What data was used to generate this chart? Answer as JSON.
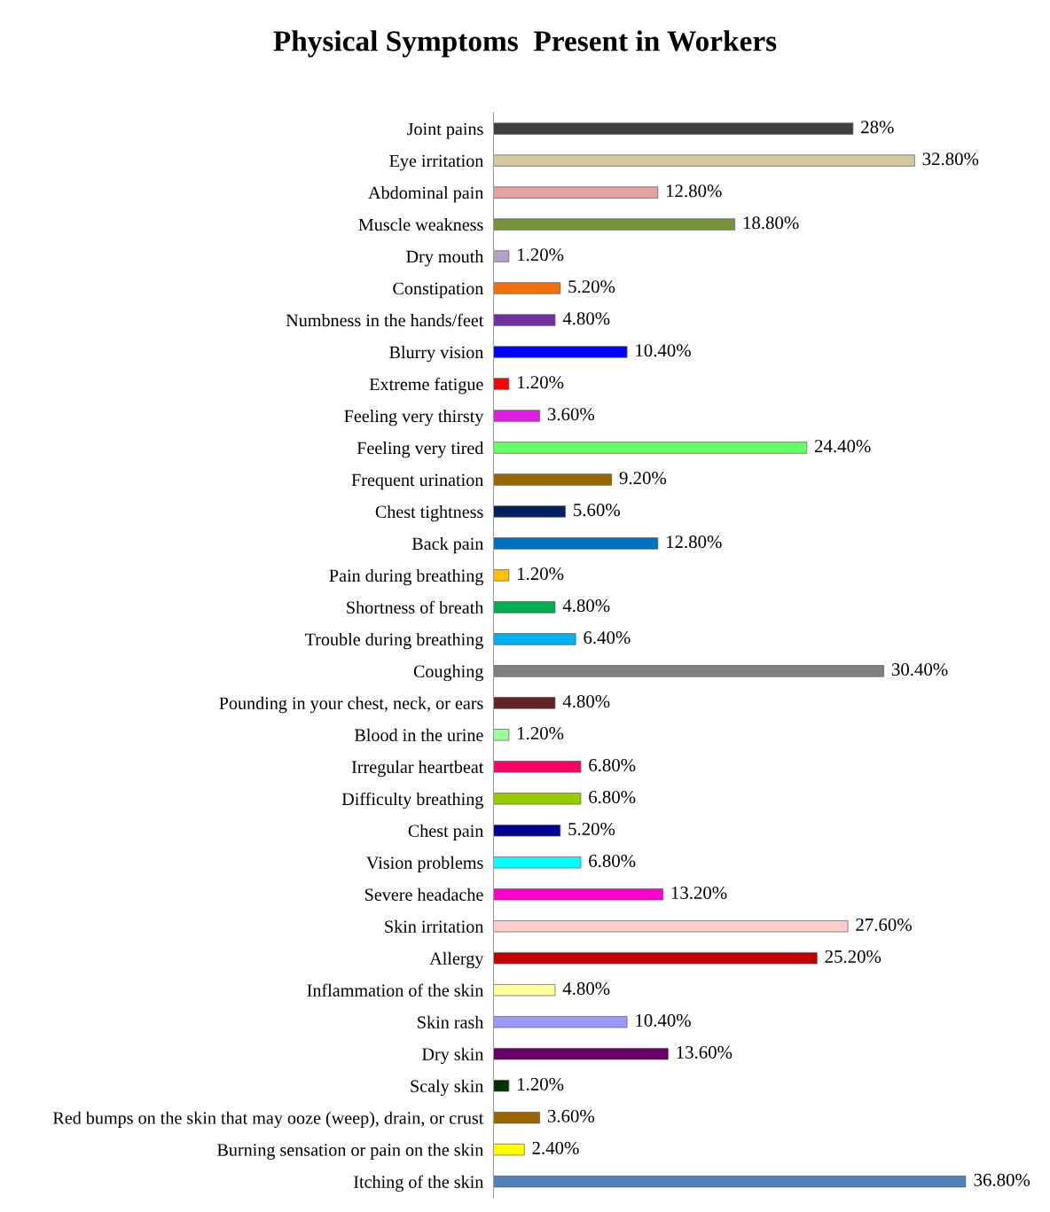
{
  "chart_data": {
    "type": "bar",
    "orientation": "horizontal",
    "title": "Physical Symptoms  Present in Workers",
    "categories": [
      "Joint pains",
      "Eye irritation",
      "Abdominal pain",
      "Muscle weakness",
      "Dry mouth",
      "Constipation",
      "Numbness in the hands/feet",
      "Blurry vision",
      "Extreme fatigue",
      "Feeling very thirsty",
      "Feeling very tired",
      "Frequent urination",
      "Chest tightness",
      "Back pain",
      "Pain during breathing",
      "Shortness of breath",
      "Trouble during breathing",
      "Coughing",
      "Pounding in your chest, neck, or ears",
      "Blood in the urine",
      "Irregular heartbeat",
      "Difficulty breathing",
      "Chest pain",
      "Vision problems",
      "Severe headache",
      "Skin irritation",
      "Allergy",
      "Inflammation of the skin",
      "Skin rash",
      "Dry skin",
      "Scaly skin",
      "Red bumps on the skin that may ooze (weep), drain, or crust",
      "Burning sensation or pain on the skin",
      "Itching of the skin"
    ],
    "values": [
      28,
      32.8,
      12.8,
      18.8,
      1.2,
      5.2,
      4.8,
      10.4,
      1.2,
      3.6,
      24.4,
      9.2,
      5.6,
      12.8,
      1.2,
      4.8,
      6.4,
      30.4,
      4.8,
      1.2,
      6.8,
      6.8,
      5.2,
      6.8,
      13.2,
      27.6,
      25.2,
      4.8,
      10.4,
      13.6,
      1.2,
      3.6,
      2.4,
      36.8
    ],
    "value_labels": [
      "28%",
      "32.80%",
      "12.80%",
      "18.80%",
      "1.20%",
      "5.20%",
      "4.80%",
      "10.40%",
      "1.20%",
      "3.60%",
      "24.40%",
      "9.20%",
      "5.60%",
      "12.80%",
      "1.20%",
      "4.80%",
      "6.40%",
      "30.40%",
      "4.80%",
      "1.20%",
      "6.80%",
      "6.80%",
      "5.20%",
      "6.80%",
      "13.20%",
      "27.60%",
      "25.20%",
      "4.80%",
      "10.40%",
      "13.60%",
      "1.20%",
      "3.60%",
      "2.40%",
      "36.80%"
    ],
    "colors": [
      "#404040",
      "#d4c9a0",
      "#e6a0a0",
      "#77933c",
      "#b3a2c7",
      "#f07010",
      "#7030a0",
      "#0000ff",
      "#ff0000",
      "#e020e0",
      "#66ff66",
      "#996600",
      "#002060",
      "#0070c0",
      "#ffc000",
      "#00b050",
      "#00b0f0",
      "#808080",
      "#632523",
      "#99ff99",
      "#ff0066",
      "#99cc00",
      "#000099",
      "#00ffff",
      "#ff00cc",
      "#ffcccc",
      "#c00000",
      "#ffff99",
      "#9999ff",
      "#660066",
      "#003300",
      "#996600",
      "#ffff00",
      "#4f81bd"
    ],
    "grid": false,
    "legend": false
  }
}
